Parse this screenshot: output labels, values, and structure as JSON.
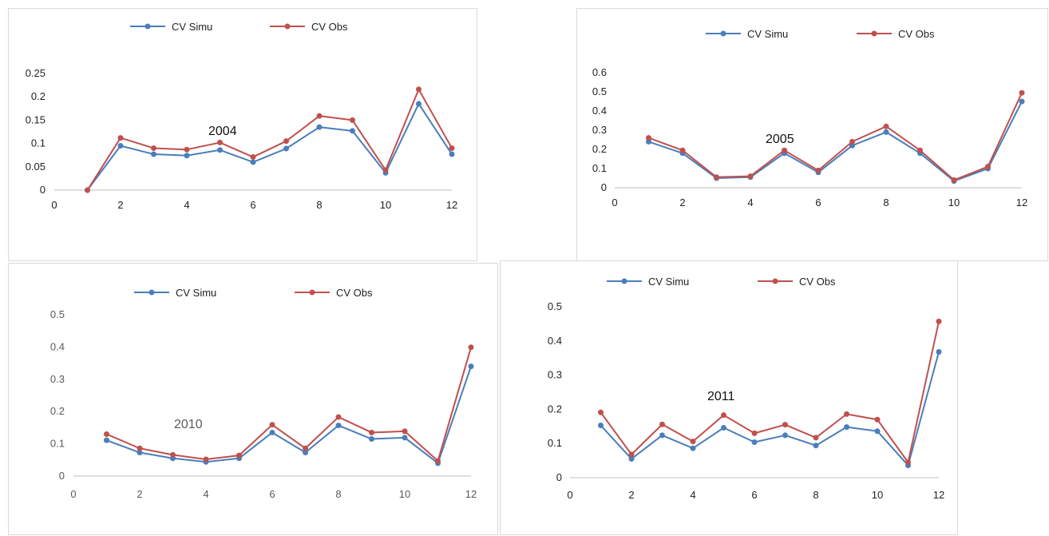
{
  "colors": {
    "simu": "#4a7ebb",
    "obs": "#c0504d",
    "axis": "#bfbfbf"
  },
  "chart_data": [
    {
      "type": "line",
      "annotation": "2004",
      "x": [
        1,
        2,
        3,
        4,
        5,
        6,
        7,
        8,
        9,
        10,
        11,
        12
      ],
      "series": [
        {
          "name": "CV Simu",
          "values": [
            0,
            0.095,
            0.077,
            0.074,
            0.086,
            0.06,
            0.089,
            0.135,
            0.127,
            0.037,
            0.185,
            0.077
          ]
        },
        {
          "name": "CV Obs",
          "values": [
            0,
            0.112,
            0.09,
            0.087,
            0.102,
            0.071,
            0.105,
            0.159,
            0.15,
            0.043,
            0.216,
            0.09
          ]
        }
      ],
      "xlim": [
        0,
        12
      ],
      "ylim": [
        0,
        0.25
      ],
      "xticks": [
        "0",
        "2",
        "4",
        "6",
        "8",
        "10",
        "12"
      ],
      "yticks": [
        "0",
        "0.05",
        "0.1",
        "0.15",
        "0.2",
        "0.25"
      ],
      "legend": "top"
    },
    {
      "type": "line",
      "annotation": "2005",
      "x": [
        1,
        2,
        3,
        4,
        5,
        6,
        7,
        8,
        9,
        10,
        11,
        12
      ],
      "series": [
        {
          "name": "CV Simu",
          "values": [
            0.24,
            0.18,
            0.05,
            0.055,
            0.18,
            0.08,
            0.22,
            0.29,
            0.18,
            0.035,
            0.1,
            0.45
          ]
        },
        {
          "name": "CV Obs",
          "values": [
            0.26,
            0.195,
            0.055,
            0.06,
            0.195,
            0.09,
            0.24,
            0.32,
            0.195,
            0.04,
            0.11,
            0.495
          ]
        }
      ],
      "xlim": [
        0,
        12
      ],
      "ylim": [
        0,
        0.6
      ],
      "xticks": [
        "0",
        "2",
        "4",
        "6",
        "8",
        "10",
        "12"
      ],
      "yticks": [
        "0",
        "0.1",
        "0.2",
        "0.3",
        "0.4",
        "0.5",
        "0.6"
      ],
      "legend": "top"
    },
    {
      "type": "line",
      "annotation": "2010",
      "x": [
        1,
        2,
        3,
        4,
        5,
        6,
        7,
        8,
        9,
        10,
        11,
        12
      ],
      "series": [
        {
          "name": "CV Simu",
          "values": [
            0.111,
            0.073,
            0.055,
            0.044,
            0.055,
            0.135,
            0.073,
            0.157,
            0.115,
            0.119,
            0.04,
            0.34
          ]
        },
        {
          "name": "CV Obs",
          "values": [
            0.13,
            0.086,
            0.066,
            0.052,
            0.064,
            0.159,
            0.086,
            0.183,
            0.135,
            0.139,
            0.047,
            0.399
          ]
        }
      ],
      "xlim": [
        0,
        12
      ],
      "ylim": [
        0,
        0.5
      ],
      "xticks": [
        "0",
        "2",
        "4",
        "6",
        "8",
        "10",
        "12"
      ],
      "yticks": [
        "0",
        "0.1",
        "0.2",
        "0.3",
        "0.4",
        "0.5"
      ],
      "legend": "top"
    },
    {
      "type": "line",
      "annotation": "2011",
      "x": [
        1,
        2,
        3,
        4,
        5,
        6,
        7,
        8,
        9,
        10,
        11,
        12
      ],
      "series": [
        {
          "name": "CV Simu",
          "values": [
            0.153,
            0.055,
            0.124,
            0.086,
            0.146,
            0.104,
            0.124,
            0.094,
            0.148,
            0.136,
            0.036,
            0.368
          ]
        },
        {
          "name": "CV Obs",
          "values": [
            0.191,
            0.068,
            0.156,
            0.106,
            0.183,
            0.13,
            0.155,
            0.117,
            0.186,
            0.17,
            0.045,
            0.457
          ]
        }
      ],
      "xlim": [
        0,
        12
      ],
      "ylim": [
        0,
        0.5
      ],
      "xticks": [
        "0",
        "2",
        "4",
        "6",
        "8",
        "10",
        "12"
      ],
      "yticks": [
        "0",
        "0.1",
        "0.2",
        "0.3",
        "0.4",
        "0.5"
      ],
      "legend": "top"
    }
  ]
}
